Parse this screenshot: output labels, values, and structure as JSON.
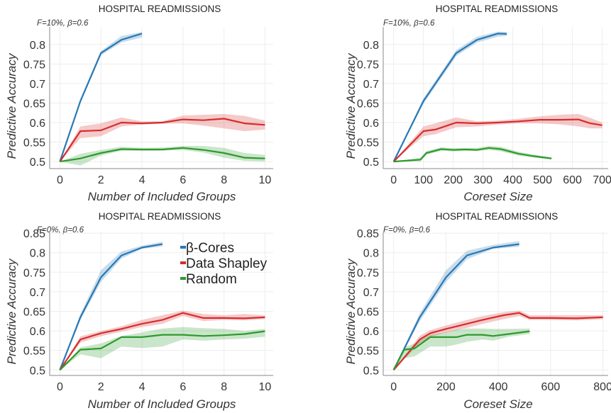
{
  "figure": {
    "legend": [
      "β-Cores",
      "Data Shapley",
      "Random"
    ],
    "colors": {
      "beta_cores": "#2878b5",
      "data_shapley": "#d62d2d",
      "random": "#2d9a2d"
    }
  },
  "chart_data": [
    {
      "type": "line",
      "title": "HOSPITAL READMISSIONS",
      "annotation": "F=10%,  β=0.6",
      "xlabel": "Number of Included Groups",
      "ylabel": "Predictive Accuracy",
      "xlim": [
        -0.5,
        10.4
      ],
      "ylim": [
        0.482,
        0.845
      ],
      "xticks": [
        0,
        2,
        4,
        6,
        8,
        10
      ],
      "yticks": [
        0.5,
        0.55,
        0.6,
        0.65,
        0.7,
        0.75,
        0.8
      ],
      "ytick_labels": [
        "0.5",
        "0.55",
        "0.6",
        "0.65",
        "0.7",
        "0.75",
        "0.8"
      ],
      "series": [
        {
          "name": "β-Cores",
          "color": "#2878b5",
          "x": [
            0,
            1,
            2,
            3,
            4
          ],
          "y": [
            0.5,
            0.655,
            0.778,
            0.812,
            0.828
          ],
          "lower": [
            0.5,
            0.65,
            0.772,
            0.805,
            0.818
          ],
          "upper": [
            0.5,
            0.66,
            0.783,
            0.822,
            0.832
          ]
        },
        {
          "name": "Data Shapley",
          "color": "#d62d2d",
          "x": [
            0,
            1,
            2,
            3,
            4,
            5,
            6,
            7,
            8,
            9,
            10
          ],
          "y": [
            0.5,
            0.578,
            0.58,
            0.6,
            0.598,
            0.6,
            0.608,
            0.606,
            0.61,
            0.598,
            0.594
          ],
          "lower": [
            0.5,
            0.56,
            0.565,
            0.59,
            0.595,
            0.597,
            0.598,
            0.592,
            0.585,
            0.578,
            0.582
          ],
          "upper": [
            0.5,
            0.59,
            0.598,
            0.613,
            0.603,
            0.603,
            0.618,
            0.62,
            0.622,
            0.617,
            0.605
          ]
        },
        {
          "name": "Random",
          "color": "#2d9a2d",
          "x": [
            0,
            1,
            2,
            3,
            4,
            5,
            6,
            7,
            8,
            9,
            10
          ],
          "y": [
            0.5,
            0.508,
            0.522,
            0.532,
            0.531,
            0.531,
            0.535,
            0.53,
            0.522,
            0.51,
            0.508
          ],
          "lower": [
            0.5,
            0.49,
            0.515,
            0.528,
            0.527,
            0.528,
            0.53,
            0.523,
            0.51,
            0.502,
            0.5
          ],
          "upper": [
            0.5,
            0.52,
            0.53,
            0.538,
            0.535,
            0.536,
            0.54,
            0.54,
            0.535,
            0.522,
            0.517
          ]
        }
      ]
    },
    {
      "type": "line",
      "title": "HOSPITAL READMISSIONS",
      "annotation": "F=10%,  β=0.6",
      "xlabel": "Coreset Size",
      "ylabel": "Predictive Accuracy",
      "xlim": [
        -35,
        720
      ],
      "ylim": [
        0.482,
        0.845
      ],
      "xticks": [
        0,
        100,
        200,
        300,
        400,
        500,
        600,
        700
      ],
      "yticks": [
        0.5,
        0.55,
        0.6,
        0.65,
        0.7,
        0.75,
        0.8
      ],
      "ytick_labels": [
        "0.5",
        "0.55",
        "0.6",
        "0.65",
        "0.7",
        "0.75",
        "0.8"
      ],
      "series": [
        {
          "name": "β-Cores",
          "color": "#2878b5",
          "x": [
            0,
            100,
            210,
            280,
            350,
            380
          ],
          "y": [
            0.5,
            0.655,
            0.778,
            0.812,
            0.828,
            0.827
          ],
          "lower": [
            0.5,
            0.648,
            0.77,
            0.805,
            0.82,
            0.822
          ],
          "upper": [
            0.5,
            0.662,
            0.786,
            0.82,
            0.833,
            0.832
          ]
        },
        {
          "name": "Data Shapley",
          "color": "#d62d2d",
          "x": [
            0,
            100,
            140,
            210,
            280,
            350,
            420,
            490,
            560,
            620,
            660,
            700
          ],
          "y": [
            0.5,
            0.578,
            0.582,
            0.6,
            0.598,
            0.6,
            0.603,
            0.607,
            0.607,
            0.608,
            0.598,
            0.593
          ],
          "lower": [
            0.5,
            0.565,
            0.57,
            0.588,
            0.59,
            0.595,
            0.598,
            0.598,
            0.595,
            0.59,
            0.585,
            0.585
          ],
          "upper": [
            0.5,
            0.59,
            0.598,
            0.613,
            0.603,
            0.605,
            0.61,
            0.616,
            0.62,
            0.622,
            0.612,
            0.6
          ]
        },
        {
          "name": "Random",
          "color": "#2d9a2d",
          "x": [
            0,
            90,
            110,
            160,
            200,
            240,
            280,
            320,
            360,
            420,
            470,
            530
          ],
          "y": [
            0.5,
            0.505,
            0.522,
            0.532,
            0.53,
            0.531,
            0.53,
            0.535,
            0.532,
            0.52,
            0.514,
            0.508
          ],
          "lower": [
            0.5,
            0.5,
            0.518,
            0.528,
            0.526,
            0.528,
            0.527,
            0.53,
            0.526,
            0.515,
            0.51,
            0.505
          ],
          "upper": [
            0.5,
            0.51,
            0.527,
            0.537,
            0.534,
            0.535,
            0.535,
            0.54,
            0.538,
            0.525,
            0.518,
            0.511
          ]
        }
      ]
    },
    {
      "type": "line",
      "title": "HOSPITAL READMISSIONS",
      "annotation": "F=0%,  β=0.6",
      "xlabel": "Number of Included Groups",
      "ylabel": "Predictive Accuracy",
      "xlim": [
        -0.5,
        10.4
      ],
      "ylim": [
        0.486,
        0.852
      ],
      "xticks": [
        0,
        2,
        4,
        6,
        8,
        10
      ],
      "yticks": [
        0.5,
        0.55,
        0.6,
        0.65,
        0.7,
        0.75,
        0.8,
        0.85
      ],
      "ytick_labels": [
        "0.5",
        "0.55",
        "0.6",
        "0.65",
        "0.7",
        "0.75",
        "0.8",
        "0.85"
      ],
      "legend": "top-right",
      "series": [
        {
          "name": "β-Cores",
          "color": "#2878b5",
          "x": [
            0,
            1,
            2,
            3,
            4,
            5
          ],
          "y": [
            0.5,
            0.635,
            0.737,
            0.793,
            0.813,
            0.822
          ],
          "lower": [
            0.5,
            0.628,
            0.725,
            0.785,
            0.81,
            0.816
          ],
          "upper": [
            0.5,
            0.643,
            0.755,
            0.803,
            0.818,
            0.828
          ]
        },
        {
          "name": "Data Shapley",
          "color": "#d62d2d",
          "x": [
            0,
            1,
            2,
            3,
            4,
            5,
            6,
            7,
            8,
            9,
            10
          ],
          "y": [
            0.5,
            0.578,
            0.594,
            0.605,
            0.618,
            0.628,
            0.646,
            0.633,
            0.633,
            0.632,
            0.635
          ],
          "lower": [
            0.5,
            0.57,
            0.586,
            0.598,
            0.61,
            0.618,
            0.638,
            0.625,
            0.628,
            0.627,
            0.63
          ],
          "upper": [
            0.5,
            0.586,
            0.6,
            0.612,
            0.628,
            0.64,
            0.652,
            0.643,
            0.64,
            0.643,
            0.64
          ]
        },
        {
          "name": "Random",
          "color": "#2d9a2d",
          "x": [
            0,
            1,
            2,
            3,
            4,
            5,
            6,
            7,
            8,
            9,
            10
          ],
          "y": [
            0.5,
            0.552,
            0.555,
            0.584,
            0.584,
            0.59,
            0.59,
            0.587,
            0.589,
            0.592,
            0.599
          ],
          "lower": [
            0.5,
            0.54,
            0.53,
            0.56,
            0.556,
            0.56,
            0.578,
            0.575,
            0.578,
            0.58,
            0.585
          ],
          "upper": [
            0.5,
            0.558,
            0.568,
            0.587,
            0.596,
            0.606,
            0.61,
            0.607,
            0.605,
            0.6,
            0.605
          ]
        }
      ]
    },
    {
      "type": "line",
      "title": "HOSPITAL READMISSIONS",
      "annotation": "F=0%,  β=0.6",
      "xlabel": "Coreset Size",
      "ylabel": "Predictive Accuracy",
      "xlim": [
        -40,
        820
      ],
      "ylim": [
        0.486,
        0.852
      ],
      "xticks": [
        0,
        200,
        400,
        600,
        800
      ],
      "yticks": [
        0.5,
        0.55,
        0.6,
        0.65,
        0.7,
        0.75,
        0.8,
        0.85
      ],
      "ytick_labels": [
        "0.5",
        "0.55",
        "0.6",
        "0.65",
        "0.7",
        "0.75",
        "0.8",
        "0.85"
      ],
      "series": [
        {
          "name": "β-Cores",
          "color": "#2878b5",
          "x": [
            0,
            100,
            200,
            280,
            380,
            480
          ],
          "y": [
            0.5,
            0.635,
            0.737,
            0.793,
            0.813,
            0.822
          ],
          "lower": [
            0.5,
            0.625,
            0.725,
            0.783,
            0.81,
            0.815
          ],
          "upper": [
            0.5,
            0.645,
            0.755,
            0.805,
            0.82,
            0.83
          ]
        },
        {
          "name": "Data Shapley",
          "color": "#d62d2d",
          "x": [
            0,
            100,
            140,
            200,
            280,
            340,
            420,
            480,
            520,
            600,
            700,
            800
          ],
          "y": [
            0.5,
            0.578,
            0.594,
            0.605,
            0.618,
            0.628,
            0.64,
            0.646,
            0.633,
            0.633,
            0.632,
            0.635
          ],
          "lower": [
            0.5,
            0.568,
            0.585,
            0.595,
            0.608,
            0.618,
            0.63,
            0.638,
            0.628,
            0.628,
            0.627,
            0.63
          ],
          "upper": [
            0.5,
            0.588,
            0.602,
            0.614,
            0.628,
            0.638,
            0.648,
            0.652,
            0.64,
            0.64,
            0.64,
            0.64
          ]
        },
        {
          "name": "Random",
          "color": "#2d9a2d",
          "x": [
            0,
            40,
            80,
            140,
            200,
            240,
            280,
            340,
            380,
            440,
            520
          ],
          "y": [
            0.5,
            0.552,
            0.555,
            0.584,
            0.584,
            0.584,
            0.59,
            0.59,
            0.587,
            0.592,
            0.599
          ],
          "lower": [
            0.5,
            0.53,
            0.535,
            0.56,
            0.56,
            0.565,
            0.572,
            0.578,
            0.575,
            0.585,
            0.592
          ],
          "upper": [
            0.5,
            0.558,
            0.568,
            0.59,
            0.596,
            0.603,
            0.606,
            0.606,
            0.605,
            0.605,
            0.606
          ]
        }
      ]
    }
  ]
}
